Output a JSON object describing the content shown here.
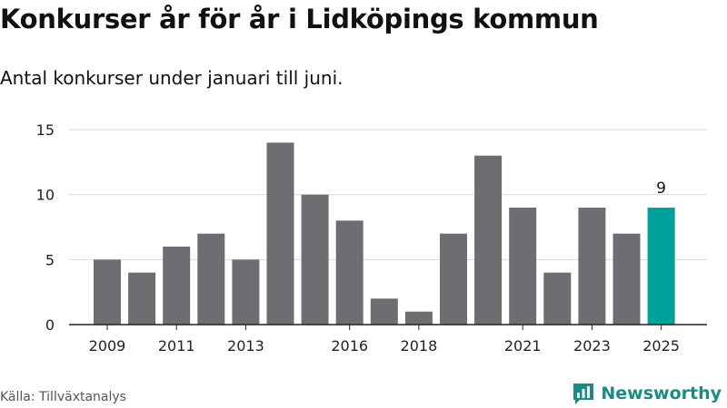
{
  "title": "Konkurser år för år i Lidköpings kommun",
  "subtitle": "Antal konkurser under januari till juni.",
  "source": "Källa: Tillväxtanalys",
  "brand": {
    "name": "Newsworthy",
    "icon": "bar-chart-speech-bubble-icon"
  },
  "colors": {
    "bar": "#6e6d72",
    "highlight": "#00a19a",
    "grid": "#d9d9d9",
    "axis": "#222222",
    "brand": "#1a8c84"
  },
  "chart_data": {
    "type": "bar",
    "title": "Konkurser år för år i Lidköpings kommun",
    "subtitle": "Antal konkurser under januari till juni.",
    "xlabel": "",
    "ylabel": "",
    "categories": [
      "2009",
      "2010",
      "2011",
      "2012",
      "2013",
      "2014",
      "2015",
      "2016",
      "2017",
      "2018",
      "2019",
      "2020",
      "2021",
      "2022",
      "2023",
      "2024",
      "2025"
    ],
    "values": [
      5,
      4,
      6,
      7,
      5,
      14,
      10,
      8,
      2,
      1,
      7,
      13,
      9,
      4,
      9,
      7,
      9
    ],
    "x_tick_labels": [
      "2009",
      "2011",
      "2013",
      "2016",
      "2018",
      "2021",
      "2023",
      "2025"
    ],
    "y_ticks": [
      0,
      5,
      10,
      15
    ],
    "ylim": [
      0,
      15
    ],
    "grid": true,
    "highlight_category": "2025",
    "data_labels": [
      {
        "category": "2025",
        "text": "9"
      }
    ]
  }
}
